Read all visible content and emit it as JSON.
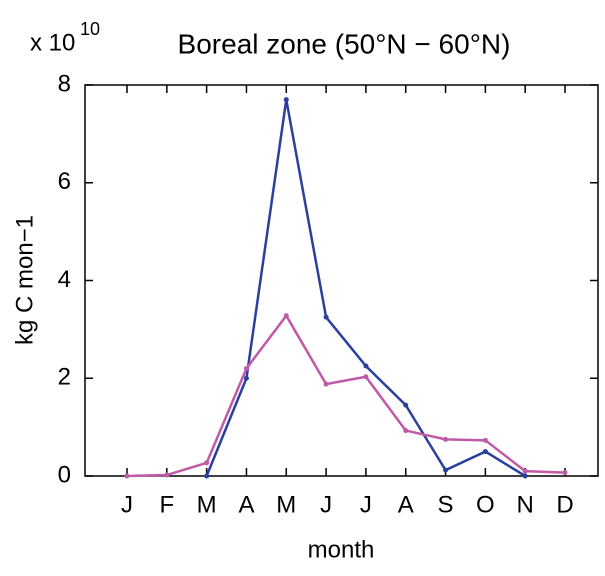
{
  "chart_data": {
    "type": "line",
    "title": "Boreal zone (50°N − 60°N)",
    "y_multiplier": {
      "base": "x 10",
      "exponent": "10"
    },
    "x_label": "month",
    "y_label": "kg C mon−1",
    "categories": [
      "J",
      "F",
      "M",
      "A",
      "M",
      "J",
      "J",
      "A",
      "S",
      "O",
      "N",
      "D"
    ],
    "series": [
      {
        "color": "#2b3f9e",
        "values": [
          null,
          null,
          0,
          2.0,
          7.7,
          3.25,
          2.25,
          1.45,
          0.12,
          0.5,
          0,
          null
        ]
      },
      {
        "color": "#c05aa8",
        "values": [
          0,
          0.02,
          0.27,
          2.2,
          3.28,
          1.88,
          2.03,
          0.93,
          0.75,
          0.73,
          0.1,
          0.07
        ]
      }
    ],
    "ylim": [
      0,
      8
    ],
    "yticks": [
      0,
      2,
      4,
      6,
      8
    ],
    "grid": false
  }
}
